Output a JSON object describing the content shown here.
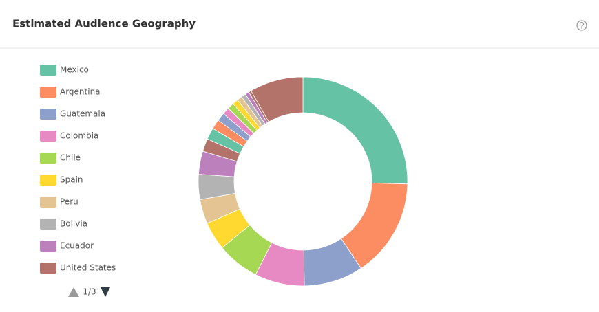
{
  "chart_data": {
    "type": "donut",
    "title": "Estimated Audience Geography",
    "categories": [
      "Mexico",
      "Argentina",
      "Guatemala",
      "Colombia",
      "Chile",
      "Spain",
      "Peru",
      "Bolivia",
      "Ecuador",
      "United States",
      null,
      null,
      null,
      null,
      null,
      null,
      null,
      null,
      null,
      null,
      null
    ],
    "values": [
      25.5,
      15.3,
      9.2,
      7.7,
      6.6,
      4.4,
      3.8,
      3.9,
      3.6,
      2.0,
      1.8,
      1.5,
      1.3,
      1.1,
      1.0,
      0.9,
      0.8,
      0.7,
      0.6,
      0.4,
      8.3
    ],
    "colors": [
      "#66c2a5",
      "#fc8d62",
      "#8da0cb",
      "#e78ac3",
      "#a6d854",
      "#ffd92f",
      "#e5c494",
      "#b3b3b3",
      "#bc80bd",
      "#b3736a",
      "#66c2a5",
      "#fc8d62",
      "#8da0cb",
      "#e78ac3",
      "#a6d854",
      "#ffd92f",
      "#e5c494",
      "#b3b3b3",
      "#bc80bd",
      "#b3736a",
      "#b3736a"
    ],
    "legend_count": 10
  },
  "legend_pagination": "1/3"
}
